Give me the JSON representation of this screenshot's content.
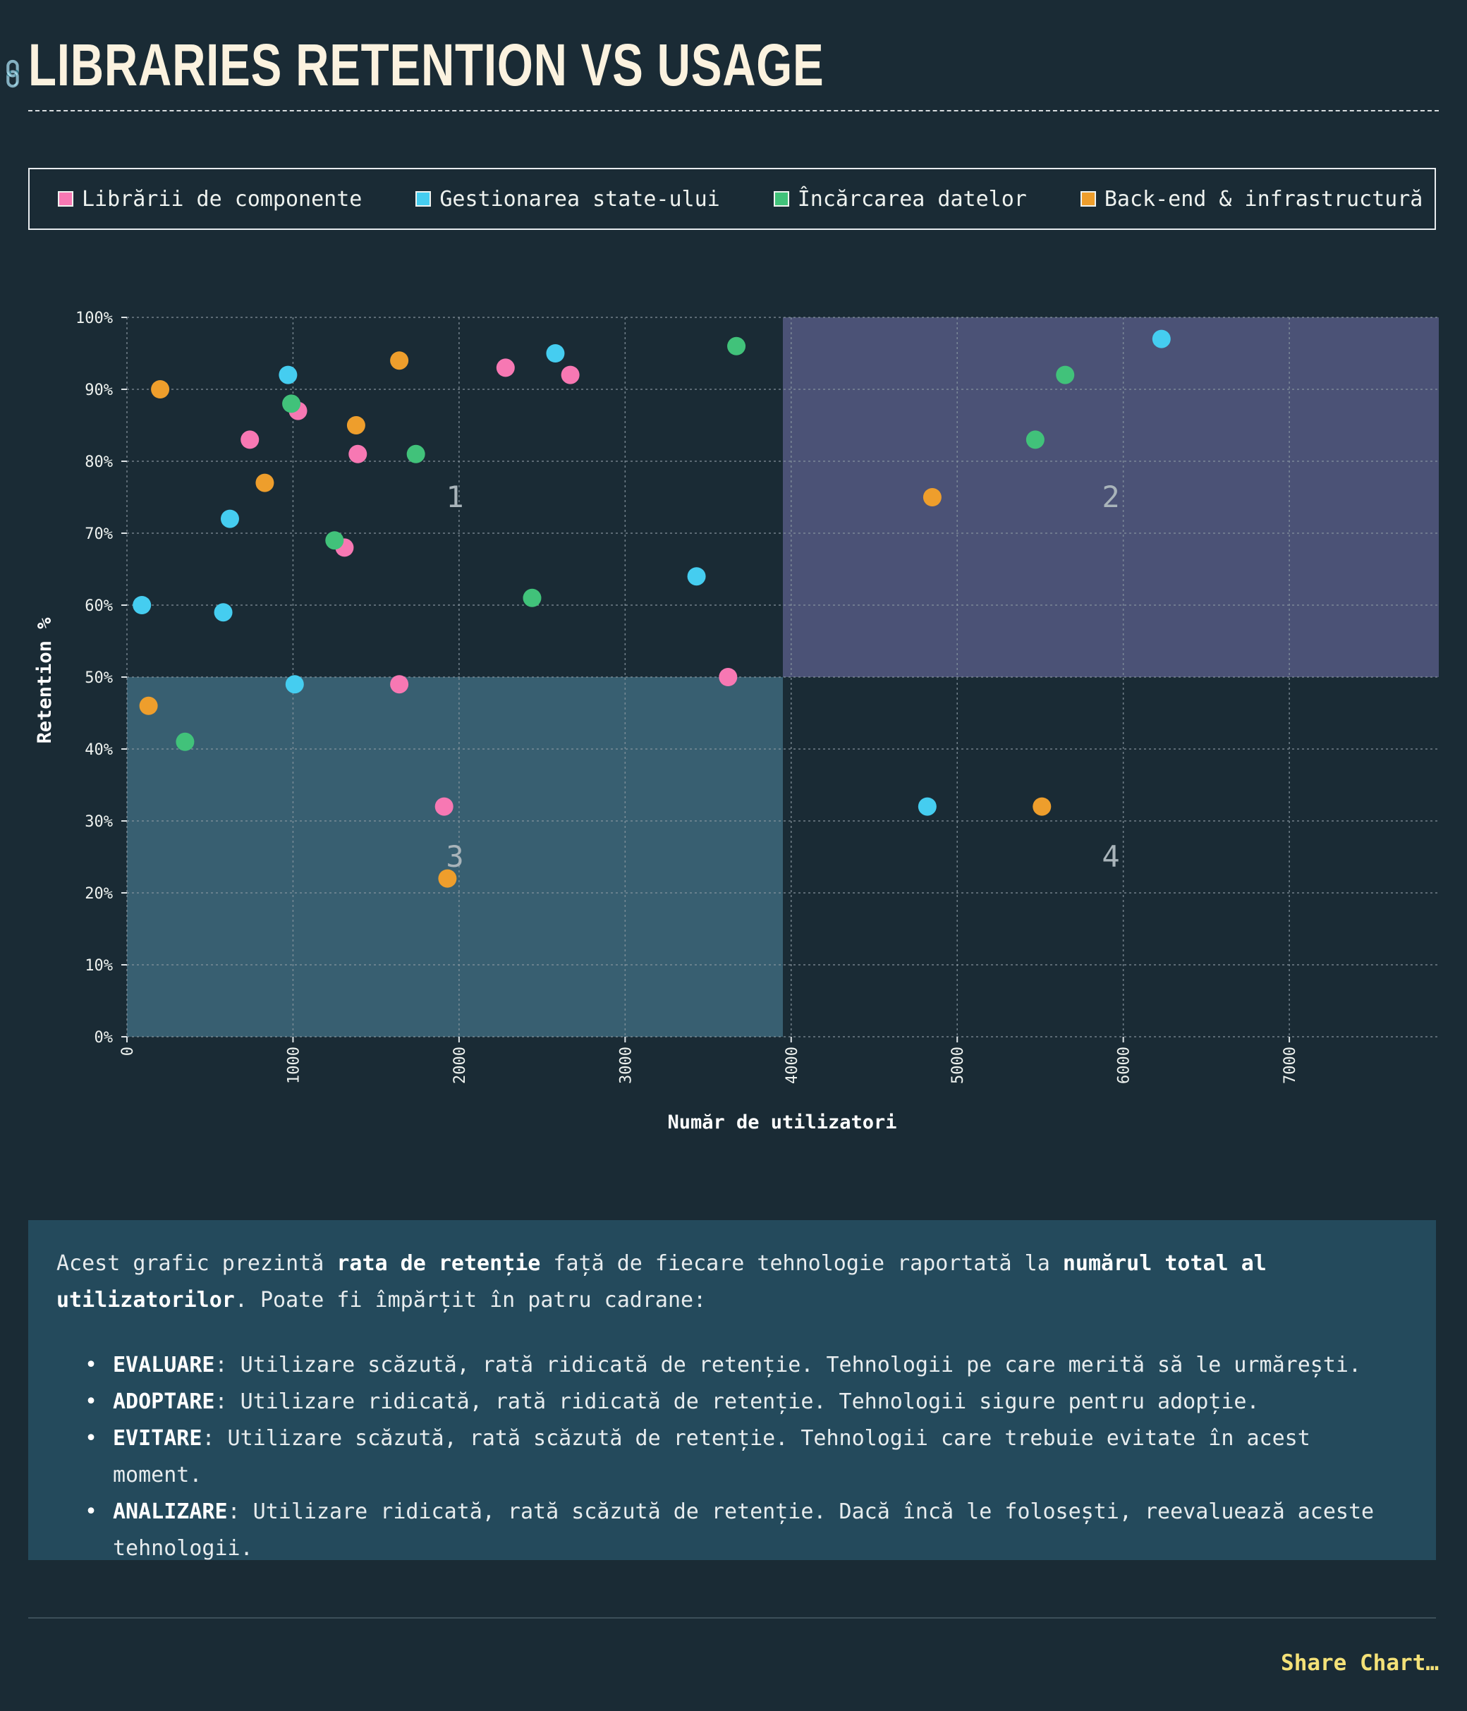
{
  "header": {
    "title": "LIBRARIES RETENTION VS USAGE",
    "anchor_icon": "link-icon"
  },
  "legend": [
    {
      "label": "Librării de componente",
      "color": "#f778b3"
    },
    {
      "label": "Gestionarea state-ului",
      "color": "#45cdf0"
    },
    {
      "label": "Încărcarea datelor",
      "color": "#41c27a"
    },
    {
      "label": "Back-end & infrastructură",
      "color": "#ee9e2c"
    }
  ],
  "chart_data": {
    "type": "scatter",
    "title": "",
    "xlabel": "Număr de utilizatori",
    "ylabel": "Retention %",
    "xlim": [
      0,
      7900
    ],
    "ylim": [
      0,
      100
    ],
    "x_ticks": [
      "0",
      "1000",
      "2000",
      "3000",
      "4000",
      "5000",
      "6000",
      "7000"
    ],
    "y_ticks": [
      "0%",
      "10%",
      "20%",
      "30%",
      "40%",
      "50%",
      "60%",
      "70%",
      "80%",
      "90%",
      "100%"
    ],
    "grid": true,
    "quadrants": [
      {
        "label": "1",
        "x_range": [
          0,
          3950
        ],
        "y_range": [
          50,
          100
        ],
        "color": ""
      },
      {
        "label": "2",
        "x_range": [
          3950,
          7900
        ],
        "y_range": [
          50,
          100
        ],
        "color": "#4b5276"
      },
      {
        "label": "3",
        "x_range": [
          0,
          3950
        ],
        "y_range": [
          0,
          50
        ],
        "color": "#385f71"
      },
      {
        "label": "4",
        "x_range": [
          3950,
          7900
        ],
        "y_range": [
          0,
          50
        ],
        "color": ""
      }
    ],
    "series": [
      {
        "name": "Librării de componente",
        "color": "#f778b3",
        "points": [
          {
            "x": 740,
            "y": 83
          },
          {
            "x": 1030,
            "y": 87
          },
          {
            "x": 1390,
            "y": 81
          },
          {
            "x": 1310,
            "y": 68
          },
          {
            "x": 2280,
            "y": 93
          },
          {
            "x": 2670,
            "y": 92
          },
          {
            "x": 1640,
            "y": 49
          },
          {
            "x": 1910,
            "y": 32
          },
          {
            "x": 3620,
            "y": 50
          }
        ]
      },
      {
        "name": "Gestionarea state-ului",
        "color": "#45cdf0",
        "points": [
          {
            "x": 970,
            "y": 92
          },
          {
            "x": 620,
            "y": 72
          },
          {
            "x": 90,
            "y": 60
          },
          {
            "x": 580,
            "y": 59
          },
          {
            "x": 1010,
            "y": 49
          },
          {
            "x": 2580,
            "y": 95
          },
          {
            "x": 3430,
            "y": 64
          },
          {
            "x": 6230,
            "y": 97
          },
          {
            "x": 4820,
            "y": 32
          }
        ]
      },
      {
        "name": "Încărcarea datelor",
        "color": "#41c27a",
        "points": [
          {
            "x": 990,
            "y": 88
          },
          {
            "x": 1740,
            "y": 81
          },
          {
            "x": 1250,
            "y": 69
          },
          {
            "x": 2440,
            "y": 61
          },
          {
            "x": 3670,
            "y": 96
          },
          {
            "x": 5650,
            "y": 92
          },
          {
            "x": 5470,
            "y": 83
          },
          {
            "x": 350,
            "y": 41
          }
        ]
      },
      {
        "name": "Back-end & infrastructură",
        "color": "#ee9e2c",
        "points": [
          {
            "x": 200,
            "y": 90
          },
          {
            "x": 1640,
            "y": 94
          },
          {
            "x": 1380,
            "y": 85
          },
          {
            "x": 830,
            "y": 77
          },
          {
            "x": 4850,
            "y": 75
          },
          {
            "x": 130,
            "y": 46
          },
          {
            "x": 1930,
            "y": 22
          },
          {
            "x": 5510,
            "y": 32
          }
        ]
      }
    ]
  },
  "description": {
    "intro_1": "Acest grafic prezintă ",
    "intro_bold_1": "rata de retenție",
    "intro_2": " față de fiecare tehnologie raportată la ",
    "intro_bold_2": "numărul total al utilizatorilor",
    "intro_3": ". Poate fi împărțit în patru cadrane:",
    "items": [
      {
        "term": "EVALUARE",
        "text": ": Utilizare scăzută, rată ridicată de retenție. Tehnologii pe care merită să le urmărești."
      },
      {
        "term": "ADOPTARE",
        "text": ": Utilizare ridicată, rată ridicată de retenție. Tehnologii sigure pentru adopție."
      },
      {
        "term": "EVITARE",
        "text": ": Utilizare scăzută, rată scăzută de retenție. Tehnologii care trebuie evitate în acest moment."
      },
      {
        "term": "ANALIZARE",
        "text": ": Utilizare ridicată, rată scăzută de retenție. Dacă încă le folosești, reevaluează aceste tehnologii."
      }
    ]
  },
  "footer": {
    "share_label": "Share Chart…"
  }
}
